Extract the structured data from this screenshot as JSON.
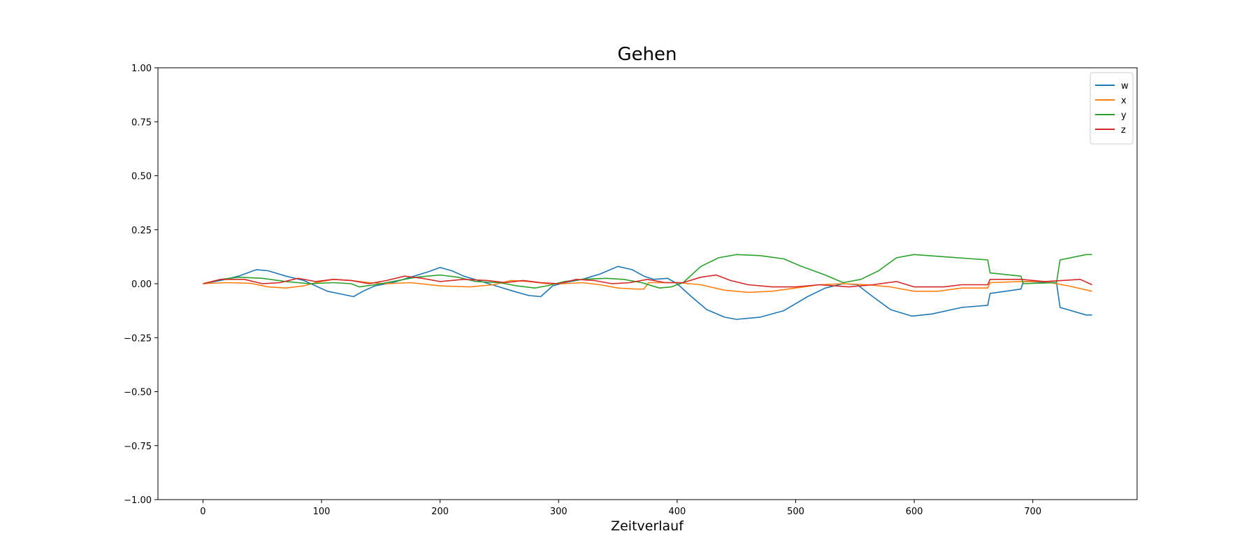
{
  "chart_data": {
    "type": "line",
    "title": "Gehen",
    "xlabel": "Zeitverlauf",
    "ylabel": "",
    "xlim": [
      -38,
      788
    ],
    "ylim": [
      -1.0,
      1.0
    ],
    "xticks": [
      0,
      100,
      200,
      300,
      400,
      500,
      600,
      700
    ],
    "yticks": [
      1.0,
      0.75,
      0.5,
      0.25,
      0.0,
      -0.25,
      -0.5,
      -0.75,
      -1.0
    ],
    "ytick_labels": [
      "1.00",
      "0.75",
      "0.50",
      "0.25",
      "0.00",
      "−0.25",
      "−0.50",
      "−0.75",
      "−1.00"
    ],
    "grid": false,
    "legend_position": "top-right",
    "series": [
      {
        "name": "w",
        "color": "#1f77b4",
        "points": [
          [
            0,
            0.0
          ],
          [
            15,
            0.015
          ],
          [
            30,
            0.035
          ],
          [
            45,
            0.065
          ],
          [
            55,
            0.06
          ],
          [
            70,
            0.035
          ],
          [
            85,
            0.015
          ],
          [
            95,
            -0.01
          ],
          [
            105,
            -0.035
          ],
          [
            118,
            -0.05
          ],
          [
            127,
            -0.06
          ],
          [
            135,
            -0.035
          ],
          [
            145,
            -0.01
          ],
          [
            160,
            0.005
          ],
          [
            175,
            0.03
          ],
          [
            190,
            0.055
          ],
          [
            200,
            0.075
          ],
          [
            210,
            0.06
          ],
          [
            220,
            0.035
          ],
          [
            235,
            0.01
          ],
          [
            250,
            -0.015
          ],
          [
            262,
            -0.035
          ],
          [
            275,
            -0.055
          ],
          [
            285,
            -0.06
          ],
          [
            295,
            -0.01
          ],
          [
            305,
            0.005
          ],
          [
            320,
            0.02
          ],
          [
            335,
            0.045
          ],
          [
            350,
            0.08
          ],
          [
            362,
            0.065
          ],
          [
            372,
            0.035
          ],
          [
            380,
            0.02
          ],
          [
            392,
            0.025
          ],
          [
            400,
            0.0
          ],
          [
            412,
            -0.06
          ],
          [
            425,
            -0.12
          ],
          [
            440,
            -0.155
          ],
          [
            450,
            -0.165
          ],
          [
            470,
            -0.155
          ],
          [
            490,
            -0.125
          ],
          [
            510,
            -0.06
          ],
          [
            525,
            -0.02
          ],
          [
            540,
            0.0
          ],
          [
            552,
            -0.005
          ],
          [
            565,
            -0.06
          ],
          [
            580,
            -0.12
          ],
          [
            598,
            -0.15
          ],
          [
            615,
            -0.14
          ],
          [
            640,
            -0.11
          ],
          [
            662,
            -0.1
          ],
          [
            664,
            -0.045
          ],
          [
            690,
            -0.025
          ],
          [
            692,
            0.01
          ],
          [
            720,
            0.005
          ],
          [
            723,
            -0.11
          ],
          [
            745,
            -0.145
          ],
          [
            750,
            -0.145
          ]
        ]
      },
      {
        "name": "x",
        "color": "#ff7f0e",
        "points": [
          [
            0,
            0.0
          ],
          [
            20,
            0.005
          ],
          [
            40,
            0.002
          ],
          [
            55,
            -0.015
          ],
          [
            70,
            -0.02
          ],
          [
            85,
            -0.01
          ],
          [
            95,
            0.005
          ],
          [
            110,
            0.02
          ],
          [
            125,
            0.015
          ],
          [
            140,
            0.005
          ],
          [
            155,
            0.0
          ],
          [
            175,
            0.005
          ],
          [
            200,
            -0.01
          ],
          [
            225,
            -0.015
          ],
          [
            245,
            -0.005
          ],
          [
            260,
            0.015
          ],
          [
            275,
            0.01
          ],
          [
            290,
            0.0
          ],
          [
            305,
            0.0
          ],
          [
            320,
            0.005
          ],
          [
            335,
            -0.005
          ],
          [
            350,
            -0.02
          ],
          [
            365,
            -0.025
          ],
          [
            372,
            -0.025
          ],
          [
            376,
            0.005
          ],
          [
            400,
            0.005
          ],
          [
            420,
            -0.005
          ],
          [
            440,
            -0.03
          ],
          [
            460,
            -0.04
          ],
          [
            480,
            -0.035
          ],
          [
            500,
            -0.02
          ],
          [
            520,
            -0.005
          ],
          [
            540,
            0.0
          ],
          [
            560,
            -0.005
          ],
          [
            580,
            -0.015
          ],
          [
            600,
            -0.035
          ],
          [
            620,
            -0.035
          ],
          [
            640,
            -0.02
          ],
          [
            662,
            -0.02
          ],
          [
            664,
            0.005
          ],
          [
            690,
            0.01
          ],
          [
            710,
            0.01
          ],
          [
            730,
            -0.01
          ],
          [
            750,
            -0.035
          ]
        ]
      },
      {
        "name": "y",
        "color": "#2ca02c",
        "points": [
          [
            0,
            0.0
          ],
          [
            15,
            0.02
          ],
          [
            30,
            0.03
          ],
          [
            50,
            0.025
          ],
          [
            70,
            0.01
          ],
          [
            90,
            0.0
          ],
          [
            110,
            0.005
          ],
          [
            125,
            0.0
          ],
          [
            132,
            -0.015
          ],
          [
            145,
            -0.005
          ],
          [
            160,
            0.01
          ],
          [
            180,
            0.03
          ],
          [
            200,
            0.04
          ],
          [
            215,
            0.03
          ],
          [
            230,
            0.01
          ],
          [
            250,
            0.005
          ],
          [
            265,
            -0.01
          ],
          [
            280,
            -0.02
          ],
          [
            290,
            -0.01
          ],
          [
            305,
            0.01
          ],
          [
            320,
            0.02
          ],
          [
            340,
            0.025
          ],
          [
            355,
            0.02
          ],
          [
            370,
            0.005
          ],
          [
            385,
            -0.02
          ],
          [
            395,
            -0.015
          ],
          [
            405,
            0.005
          ],
          [
            420,
            0.08
          ],
          [
            435,
            0.12
          ],
          [
            450,
            0.135
          ],
          [
            470,
            0.13
          ],
          [
            490,
            0.115
          ],
          [
            505,
            0.08
          ],
          [
            525,
            0.04
          ],
          [
            540,
            0.005
          ],
          [
            555,
            0.02
          ],
          [
            570,
            0.06
          ],
          [
            585,
            0.12
          ],
          [
            600,
            0.135
          ],
          [
            625,
            0.125
          ],
          [
            662,
            0.11
          ],
          [
            664,
            0.05
          ],
          [
            690,
            0.035
          ],
          [
            692,
            0.0
          ],
          [
            720,
            0.005
          ],
          [
            723,
            0.11
          ],
          [
            745,
            0.135
          ],
          [
            750,
            0.135
          ]
        ]
      },
      {
        "name": "z",
        "color": "#d62728",
        "points": [
          [
            0,
            0.0
          ],
          [
            15,
            0.02
          ],
          [
            35,
            0.02
          ],
          [
            50,
            0.0
          ],
          [
            65,
            0.005
          ],
          [
            80,
            0.025
          ],
          [
            95,
            0.01
          ],
          [
            110,
            0.02
          ],
          [
            125,
            0.015
          ],
          [
            140,
            0.0
          ],
          [
            155,
            0.015
          ],
          [
            170,
            0.035
          ],
          [
            185,
            0.025
          ],
          [
            200,
            0.01
          ],
          [
            220,
            0.02
          ],
          [
            240,
            0.015
          ],
          [
            255,
            0.005
          ],
          [
            270,
            0.015
          ],
          [
            285,
            0.005
          ],
          [
            300,
            0.0
          ],
          [
            315,
            0.02
          ],
          [
            330,
            0.015
          ],
          [
            345,
            0.0
          ],
          [
            360,
            0.005
          ],
          [
            375,
            0.02
          ],
          [
            390,
            0.005
          ],
          [
            405,
            0.005
          ],
          [
            420,
            0.03
          ],
          [
            433,
            0.04
          ],
          [
            445,
            0.015
          ],
          [
            460,
            -0.005
          ],
          [
            480,
            -0.015
          ],
          [
            500,
            -0.015
          ],
          [
            520,
            -0.005
          ],
          [
            545,
            -0.015
          ],
          [
            565,
            -0.005
          ],
          [
            585,
            0.01
          ],
          [
            600,
            -0.015
          ],
          [
            625,
            -0.015
          ],
          [
            640,
            -0.005
          ],
          [
            662,
            -0.005
          ],
          [
            664,
            0.02
          ],
          [
            690,
            0.02
          ],
          [
            710,
            0.01
          ],
          [
            725,
            0.015
          ],
          [
            740,
            0.02
          ],
          [
            750,
            -0.005
          ]
        ]
      }
    ]
  }
}
